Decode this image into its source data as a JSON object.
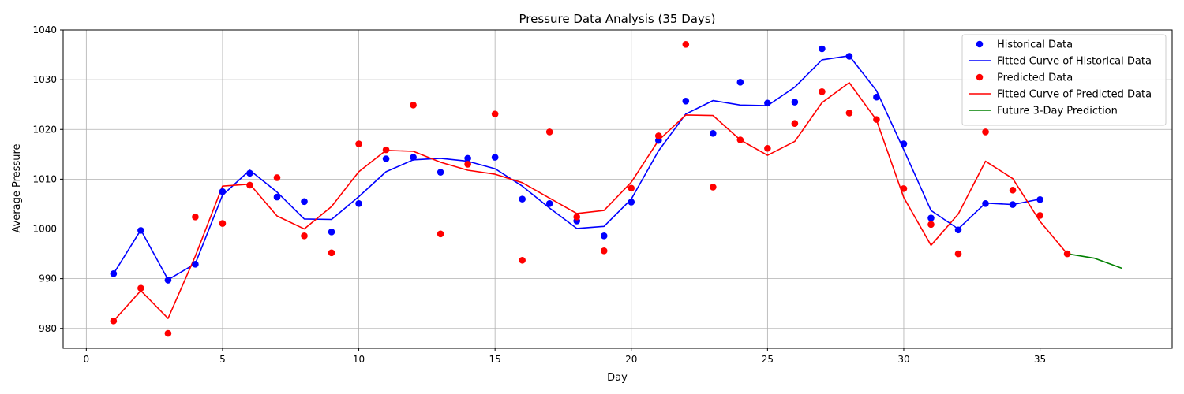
{
  "chart_data": {
    "type": "line",
    "title": "Pressure Data Analysis (35 Days)",
    "xlabel": "Day",
    "ylabel": "Average Pressure",
    "xlim": [
      -0.85,
      39.85
    ],
    "ylim": [
      976,
      1040
    ],
    "xticks": [
      0,
      5,
      10,
      15,
      20,
      25,
      30,
      35
    ],
    "yticks": [
      980,
      990,
      1000,
      1010,
      1020,
      1030,
      1040
    ],
    "grid": true,
    "legend_position": "top-right",
    "series": [
      {
        "name": "Historical Data",
        "kind": "scatter",
        "color": "#0000ff",
        "x": [
          1,
          2,
          3,
          4,
          5,
          6,
          7,
          8,
          9,
          10,
          11,
          12,
          13,
          14,
          15,
          16,
          17,
          18,
          19,
          20,
          21,
          22,
          23,
          24,
          25,
          26,
          27,
          28,
          29,
          30,
          31,
          32,
          33,
          34,
          35
        ],
        "y": [
          991.0,
          999.7,
          989.7,
          992.9,
          1007.5,
          1011.2,
          1006.4,
          1005.5,
          999.4,
          1005.1,
          1014.1,
          1014.4,
          1011.4,
          1014.2,
          1014.4,
          1006.0,
          1005.1,
          1001.6,
          998.6,
          1005.4,
          1017.8,
          1025.7,
          1019.2,
          1029.5,
          1025.3,
          1025.5,
          1036.2,
          1034.7,
          1026.5,
          1017.1,
          1002.2,
          999.8,
          1005.1,
          1004.9,
          1005.9
        ]
      },
      {
        "name": "Fitted Curve of Historical Data",
        "kind": "line",
        "color": "#0000ff",
        "x": [
          1,
          2,
          3,
          4,
          5,
          6,
          7,
          8,
          9,
          10,
          11,
          12,
          13,
          14,
          15,
          16,
          17,
          18,
          19,
          20,
          21,
          22,
          23,
          24,
          25,
          26,
          27,
          28,
          29,
          30,
          31,
          32,
          33,
          34,
          35
        ],
        "y": [
          991.0,
          999.8,
          989.8,
          993.0,
          1006.8,
          1011.8,
          1007.4,
          1002.0,
          1001.9,
          1006.5,
          1011.5,
          1013.9,
          1014.2,
          1013.6,
          1012.1,
          1008.6,
          1004.2,
          1000.1,
          1000.5,
          1006.0,
          1015.7,
          1023.1,
          1025.8,
          1024.9,
          1024.8,
          1028.5,
          1034.0,
          1034.8,
          1027.8,
          1015.9,
          1003.7,
          1000.0,
          1005.2,
          1004.9,
          1006.0
        ]
      },
      {
        "name": "Predicted Data",
        "kind": "scatter",
        "color": "#ff0000",
        "x": [
          1,
          2,
          3,
          4,
          5,
          6,
          7,
          8,
          9,
          10,
          11,
          12,
          13,
          14,
          15,
          16,
          17,
          18,
          19,
          20,
          21,
          22,
          23,
          24,
          25,
          26,
          27,
          28,
          29,
          30,
          31,
          32,
          33,
          34,
          35,
          36
        ],
        "y": [
          981.5,
          988.1,
          979.0,
          1002.4,
          1001.1,
          1008.8,
          1010.3,
          998.6,
          995.2,
          1017.1,
          1015.9,
          1024.9,
          999.0,
          1013.0,
          1023.1,
          993.7,
          1019.5,
          1002.4,
          995.6,
          1008.2,
          1018.7,
          1037.1,
          1008.4,
          1017.9,
          1016.2,
          1021.2,
          1027.6,
          1023.3,
          1022.0,
          1008.1,
          1000.9,
          995.0,
          1019.5,
          1007.8,
          1002.7,
          995.0
        ]
      },
      {
        "name": "Fitted Curve of Predicted Data",
        "kind": "line",
        "color": "#ff0000",
        "x": [
          1,
          2,
          3,
          4,
          5,
          6,
          7,
          8,
          9,
          10,
          11,
          12,
          13,
          14,
          15,
          16,
          17,
          18,
          19,
          20,
          21,
          22,
          23,
          24,
          25,
          26,
          27,
          28,
          29,
          30,
          31,
          32,
          33,
          34,
          35,
          36
        ],
        "y": [
          981.5,
          987.6,
          982.0,
          994.5,
          1008.6,
          1009.0,
          1002.6,
          1000.0,
          1004.5,
          1011.5,
          1015.8,
          1015.6,
          1013.4,
          1011.8,
          1011.0,
          1009.3,
          1006.2,
          1003.1,
          1003.7,
          1009.4,
          1017.8,
          1022.9,
          1022.8,
          1017.9,
          1014.8,
          1017.6,
          1025.4,
          1029.4,
          1021.9,
          1006.3,
          996.7,
          1003.0,
          1013.6,
          1010.1,
          1001.5,
          995.0
        ]
      },
      {
        "name": "Future 3-Day Prediction",
        "kind": "line",
        "color": "#008000",
        "x": [
          36,
          37,
          38
        ],
        "y": [
          995.0,
          994.1,
          992.1
        ]
      }
    ]
  }
}
